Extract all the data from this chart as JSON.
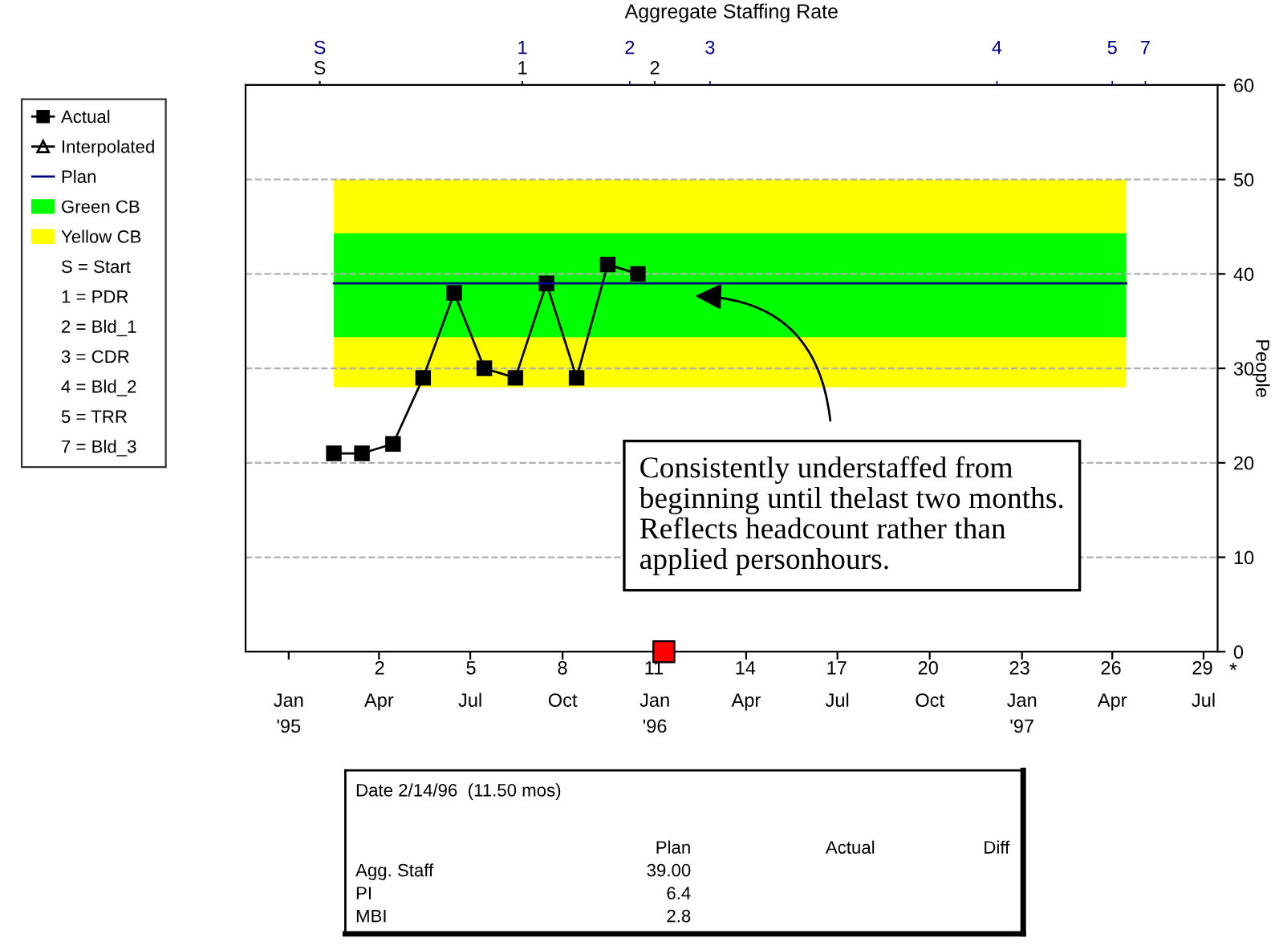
{
  "chart_data": [
    {
      "type": "line",
      "title": "Aggregate Staffing Rate",
      "ylabel": "People",
      "xlim": [
        "1994-11-19",
        "1997-07-15"
      ],
      "ylim": [
        0,
        60
      ],
      "yticks": [
        0,
        10,
        20,
        30,
        40,
        50,
        60
      ],
      "xticks": [
        {
          "value": "1995-01-01",
          "label": "Jan\n'95"
        },
        {
          "value": "1995-04-01",
          "label": "Apr"
        },
        {
          "value": "1995-07-01",
          "label": "Jul"
        },
        {
          "value": "1995-10-01",
          "label": "Oct"
        },
        {
          "value": "1996-01-01",
          "label": "Jan\n'96"
        },
        {
          "value": "1996-04-01",
          "label": "Apr"
        },
        {
          "value": "1996-07-01",
          "label": "Jul"
        },
        {
          "value": "1996-10-01",
          "label": "Oct"
        },
        {
          "value": "1997-01-01",
          "label": "Jan\n'97"
        },
        {
          "value": "1997-04-01",
          "label": "Apr"
        },
        {
          "value": "1997-07-01",
          "label": "Jul"
        }
      ],
      "x2lim": [
        -2.4,
        29.5
      ],
      "x2ticks": [
        2,
        5,
        8,
        11,
        14,
        17,
        20,
        23,
        26,
        29
      ],
      "grid": "y",
      "legend": "left",
      "series": [
        {
          "name": "Actual",
          "type": "line",
          "color": "#000000",
          "marker": "square",
          "x": [
            "1995-02-15",
            "1995-03-15",
            "1995-04-15",
            "1995-05-15",
            "1995-06-15",
            "1995-07-15",
            "1995-08-15",
            "1995-09-15",
            "1995-10-15",
            "1995-11-15",
            "1995-12-15"
          ],
          "values": [
            21,
            21,
            22,
            29,
            38,
            30,
            29,
            39,
            29,
            41,
            40
          ]
        },
        {
          "name": "Interpolated",
          "type": "line",
          "color": "#000000",
          "marker": "triangle"
        },
        {
          "name": "Plan",
          "type": "line",
          "color": "#000080",
          "marker": "none",
          "x": [
            "1995-02-15",
            "1997-04-15"
          ],
          "values": [
            39,
            39
          ]
        },
        {
          "name": "Green CB",
          "type": "line",
          "color": "#00ff00",
          "x": [
            "1995-02-15",
            "1997-04-15"
          ],
          "values": [
            null,
            null
          ],
          "lower": [
            33.3,
            33.3
          ],
          "upper": [
            44.3,
            44.3
          ]
        },
        {
          "name": "Yellow CB",
          "type": "line",
          "color": "#ffff00",
          "x": [
            "1995-02-15",
            "1997-04-15"
          ],
          "values": [
            null,
            null
          ],
          "lower": [
            28,
            28
          ],
          "upper": [
            50,
            50
          ]
        },
        {
          "type": "scatter",
          "color": "#ff0000",
          "marker": "square",
          "x": [
            "1996-01-10"
          ],
          "values": [
            0
          ]
        }
      ],
      "ref_lines": [
        {
          "axis": "x",
          "value": "1995-02-01",
          "label": "S",
          "color": "#00008b"
        },
        {
          "axis": "x",
          "value": "1995-08-22",
          "label": "1",
          "color": "#00008b"
        },
        {
          "axis": "x",
          "value": "1995-12-07",
          "label": "2",
          "color": "#00008b"
        },
        {
          "axis": "x",
          "value": "1996-02-25",
          "label": "3",
          "color": "#00008b"
        },
        {
          "axis": "x",
          "value": "1996-12-07",
          "label": "4",
          "color": "#00008b"
        },
        {
          "axis": "x",
          "value": "1997-04-01",
          "label": "5",
          "color": "#00008b"
        },
        {
          "axis": "x",
          "value": "1997-05-04",
          "label": "7",
          "color": "#00008b"
        },
        {
          "axis": "x",
          "value": "1995-02-01",
          "label": "S",
          "color": "#000000"
        },
        {
          "axis": "x",
          "value": "1995-08-22",
          "label": "1",
          "color": "#000000"
        },
        {
          "axis": "x",
          "value": "1996-01-01",
          "label": "2",
          "color": "#000000"
        }
      ],
      "annotations": [
        "Consistently understaffed from\nbeginning until thelast two months.\nReflects headcount rather than\napplied personhours.",
        "*",
        "S = Start",
        "1 = PDR",
        "2 = Bld_1",
        "3 = CDR",
        "4 = Bld_2",
        "5 = TRR",
        "7 = Bld_3"
      ]
    },
    {
      "type": "other",
      "title": "Date 2/14/96  (11.50 mos)",
      "categories": [
        "Plan",
        "Actual",
        "Diff"
      ],
      "y_categories": [
        "Agg. Staff",
        "PI",
        "MBI"
      ],
      "cell_labels": [
        [
          "39.00",
          null,
          null
        ],
        [
          "6.4",
          null,
          null
        ],
        [
          "2.8",
          null,
          null
        ]
      ]
    }
  ]
}
